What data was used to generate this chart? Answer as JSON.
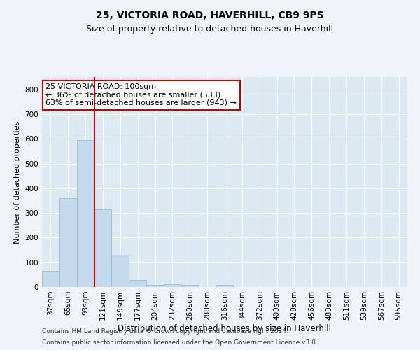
{
  "title1": "25, VICTORIA ROAD, HAVERHILL, CB9 9PS",
  "title2": "Size of property relative to detached houses in Haverhill",
  "xlabel": "Distribution of detached houses by size in Haverhill",
  "ylabel": "Number of detached properties",
  "categories": [
    "37sqm",
    "65sqm",
    "93sqm",
    "121sqm",
    "149sqm",
    "177sqm",
    "204sqm",
    "232sqm",
    "260sqm",
    "288sqm",
    "316sqm",
    "344sqm",
    "372sqm",
    "400sqm",
    "428sqm",
    "456sqm",
    "483sqm",
    "511sqm",
    "539sqm",
    "567sqm",
    "595sqm"
  ],
  "values": [
    65,
    360,
    595,
    315,
    130,
    28,
    9,
    10,
    9,
    0,
    9,
    0,
    0,
    0,
    0,
    0,
    0,
    0,
    0,
    0,
    0
  ],
  "bar_color": "#c5d9ec",
  "bar_edgecolor": "#8ab4d4",
  "vline_x": 2.5,
  "vline_color": "#cc0000",
  "annotation_text": "25 VICTORIA ROAD: 100sqm\n← 36% of detached houses are smaller (533)\n63% of semi-detached houses are larger (943) →",
  "annotation_box_facecolor": "#ffffff",
  "annotation_box_edgecolor": "#cc0000",
  "ylim": [
    0,
    850
  ],
  "yticks": [
    0,
    100,
    200,
    300,
    400,
    500,
    600,
    700,
    800
  ],
  "fig_facecolor": "#f0f4f8",
  "plot_facecolor": "#dce8f2",
  "grid_color": "#ffffff",
  "footer1": "Contains HM Land Registry data © Crown copyright and database right 2024.",
  "footer2": "Contains public sector information licensed under the Open Government Licence v3.0.",
  "title1_fontsize": 10,
  "title2_fontsize": 9,
  "xlabel_fontsize": 8.5,
  "ylabel_fontsize": 8,
  "tick_fontsize": 7.5,
  "annotation_fontsize": 8,
  "footer_fontsize": 6.5
}
